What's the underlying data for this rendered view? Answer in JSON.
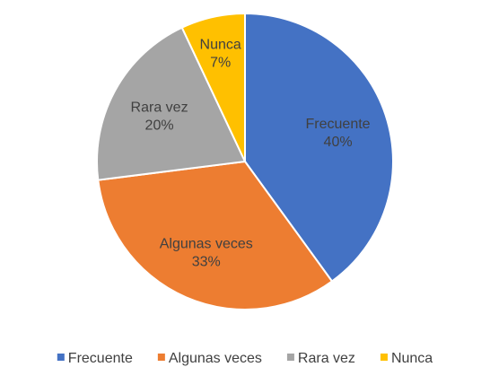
{
  "chart_data": {
    "type": "pie",
    "categories": [
      "Frecuente",
      "Algunas veces",
      "Rara vez",
      "Nunca"
    ],
    "values": [
      40,
      33,
      20,
      7
    ],
    "value_labels": [
      "40%",
      "33%",
      "20%",
      "7%"
    ],
    "colors": [
      "#4472c4",
      "#ed7d31",
      "#a5a5a5",
      "#ffc000"
    ],
    "legend": "bottom"
  }
}
